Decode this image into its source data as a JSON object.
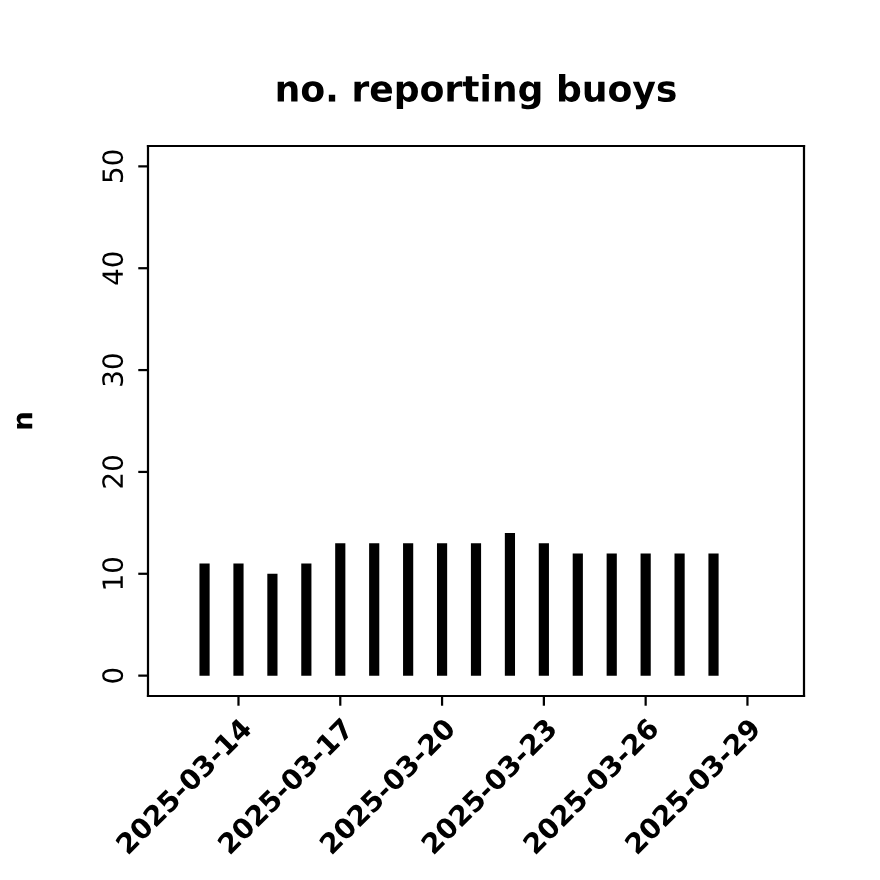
{
  "chart_data": {
    "type": "bar",
    "title": "no. reporting buoys",
    "ylabel": "n",
    "x": [
      "2025-03-13",
      "2025-03-14",
      "2025-03-15",
      "2025-03-16",
      "2025-03-17",
      "2025-03-18",
      "2025-03-19",
      "2025-03-20",
      "2025-03-21",
      "2025-03-22",
      "2025-03-23",
      "2025-03-24",
      "2025-03-25",
      "2025-03-26",
      "2025-03-27",
      "2025-03-28",
      "2025-03-29"
    ],
    "values": [
      11,
      11,
      10,
      11,
      13,
      13,
      13,
      13,
      13,
      14,
      13,
      12,
      12,
      12,
      12,
      12,
      0
    ],
    "color": "#000000",
    "xlim": [
      "2025-03-11T08:00",
      "2025-03-30T16:00"
    ],
    "xticks": [
      "2025-03-14",
      "2025-03-17",
      "2025-03-20",
      "2025-03-23",
      "2025-03-26",
      "2025-03-29"
    ],
    "ylim": [
      -2,
      52
    ],
    "yticks": [
      0,
      10,
      20,
      30,
      40,
      50
    ],
    "grid": false,
    "legend": false
  }
}
